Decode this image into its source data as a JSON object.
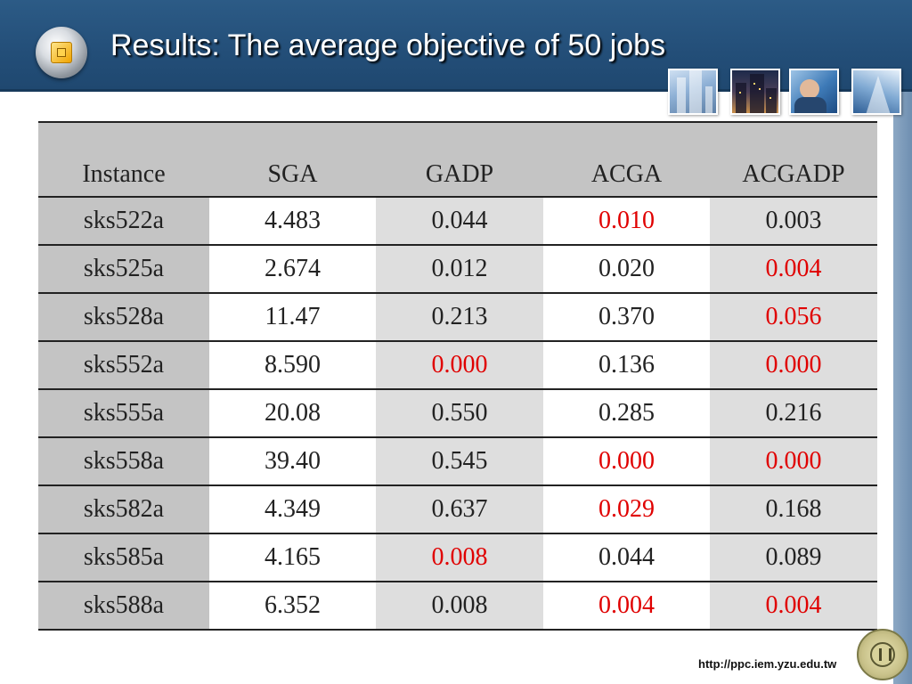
{
  "slide": {
    "title": "Results: The average objective of 50 jobs",
    "footer_url": "http://ppc.iem.yzu.edu.tw",
    "colors": {
      "header_bg": "#24507a",
      "highlight": "#e00000",
      "header_row_bg": "#c4c4c4",
      "alt_column_bg": "#dedede"
    }
  },
  "table": {
    "columns": [
      "Instance",
      "SGA",
      "GADP",
      "ACGA",
      "ACGADP"
    ],
    "rows": [
      {
        "cells": [
          "sks522a",
          "4.483",
          "0.044",
          "0.010",
          "0.003"
        ],
        "highlight": [
          false,
          false,
          false,
          true,
          false
        ]
      },
      {
        "cells": [
          "sks525a",
          "2.674",
          "0.012",
          "0.020",
          "0.004"
        ],
        "highlight": [
          false,
          false,
          false,
          false,
          true
        ]
      },
      {
        "cells": [
          "sks528a",
          "11.47",
          "0.213",
          "0.370",
          "0.056"
        ],
        "highlight": [
          false,
          false,
          false,
          false,
          true
        ]
      },
      {
        "cells": [
          "sks552a",
          "8.590",
          "0.000",
          "0.136",
          "0.000"
        ],
        "highlight": [
          false,
          false,
          true,
          false,
          true
        ]
      },
      {
        "cells": [
          "sks555a",
          "20.08",
          "0.550",
          "0.285",
          "0.216"
        ],
        "highlight": [
          false,
          false,
          false,
          false,
          false
        ]
      },
      {
        "cells": [
          "sks558a",
          "39.40",
          "0.545",
          "0.000",
          "0.000"
        ],
        "highlight": [
          false,
          false,
          false,
          true,
          true
        ]
      },
      {
        "cells": [
          "sks582a",
          "4.349",
          "0.637",
          "0.029",
          "0.168"
        ],
        "highlight": [
          false,
          false,
          false,
          true,
          false
        ]
      },
      {
        "cells": [
          "sks585a",
          "4.165",
          "0.008",
          "0.044",
          "0.089"
        ],
        "highlight": [
          false,
          false,
          true,
          false,
          false
        ]
      },
      {
        "cells": [
          "sks588a",
          "6.352",
          "0.008",
          "0.004",
          "0.004"
        ],
        "highlight": [
          false,
          false,
          false,
          true,
          true
        ]
      }
    ]
  },
  "icons": {
    "bullet": "slide-bullet-icon",
    "logo": "university-seal-icon"
  }
}
